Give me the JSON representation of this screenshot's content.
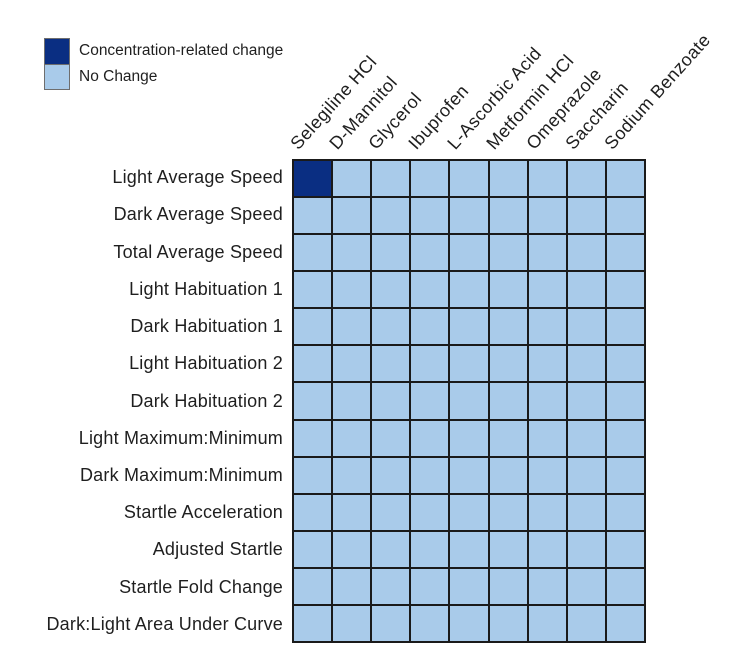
{
  "legend": {
    "items": [
      {
        "label": "Concentration-related change",
        "color": "#0a2e82"
      },
      {
        "label": "No Change",
        "color": "#a9cbea"
      }
    ]
  },
  "chart_data": {
    "type": "heatmap",
    "title": "",
    "legend_position": "top-left",
    "grid_line_color": "#1a1a1a",
    "background_color": "#ffffff",
    "columns": [
      "Selegiline HCl",
      "D-Mannitol",
      "Glycerol",
      "Ibuprofen",
      "L-Ascorbic Acid",
      "Metformin HCl",
      "Omeprazole",
      "Saccharin",
      "Sodium Benzoate"
    ],
    "rows": [
      "Light Average Speed",
      "Dark Average Speed",
      "Total Average Speed",
      "Light Habituation 1",
      "Dark Habituation 1",
      "Light Habituation 2",
      "Dark Habituation 2",
      "Light Maximum:Minimum",
      "Dark Maximum:Minimum",
      "Startle Acceleration",
      "Adjusted Startle",
      "Startle Fold Change",
      "Dark:Light Area Under Curve"
    ],
    "value_labels": {
      "1": "Concentration-related change",
      "0": "No Change"
    },
    "values": [
      [
        1,
        0,
        0,
        0,
        0,
        0,
        0,
        0,
        0
      ],
      [
        0,
        0,
        0,
        0,
        0,
        0,
        0,
        0,
        0
      ],
      [
        0,
        0,
        0,
        0,
        0,
        0,
        0,
        0,
        0
      ],
      [
        0,
        0,
        0,
        0,
        0,
        0,
        0,
        0,
        0
      ],
      [
        0,
        0,
        0,
        0,
        0,
        0,
        0,
        0,
        0
      ],
      [
        0,
        0,
        0,
        0,
        0,
        0,
        0,
        0,
        0
      ],
      [
        0,
        0,
        0,
        0,
        0,
        0,
        0,
        0,
        0
      ],
      [
        0,
        0,
        0,
        0,
        0,
        0,
        0,
        0,
        0
      ],
      [
        0,
        0,
        0,
        0,
        0,
        0,
        0,
        0,
        0
      ],
      [
        0,
        0,
        0,
        0,
        0,
        0,
        0,
        0,
        0
      ],
      [
        0,
        0,
        0,
        0,
        0,
        0,
        0,
        0,
        0
      ],
      [
        0,
        0,
        0,
        0,
        0,
        0,
        0,
        0,
        0
      ],
      [
        0,
        0,
        0,
        0,
        0,
        0,
        0,
        0,
        0
      ]
    ]
  }
}
